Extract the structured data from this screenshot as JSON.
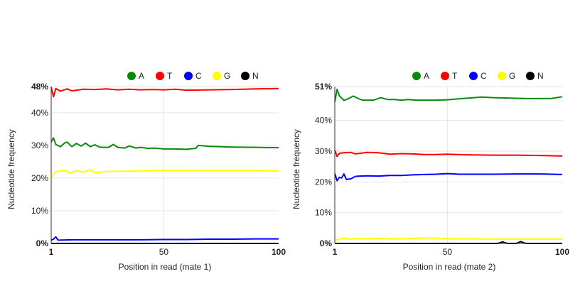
{
  "legend_colors": {
    "A": "#0a8a0a",
    "T": "#ff0000",
    "C": "#0000ff",
    "G": "#ffff00",
    "N": "#000000"
  },
  "chart_data": [
    {
      "type": "line",
      "xlabel": "Position in read (mate 1)",
      "ylabel": "Nucleotide frequency",
      "xlim": [
        1,
        100
      ],
      "ylim": [
        0,
        48
      ],
      "x_ticks": [
        1,
        50,
        100
      ],
      "y_ticks": [
        {
          "value": 0,
          "label": "0%"
        },
        {
          "value": 10,
          "label": "10%"
        },
        {
          "value": 20,
          "label": "20%"
        },
        {
          "value": 30,
          "label": "30%"
        },
        {
          "value": 40,
          "label": "40%"
        },
        {
          "value": 48,
          "label": "48%"
        }
      ],
      "grid": true,
      "legend_position": "top",
      "series": [
        {
          "name": "A",
          "color": "#0a8a0a",
          "points": [
            [
              1,
              31
            ],
            [
              2,
              32.3
            ],
            [
              3,
              30.3
            ],
            [
              5,
              29.6
            ],
            [
              7,
              30.8
            ],
            [
              8,
              31
            ],
            [
              10,
              29.6
            ],
            [
              12,
              30.6
            ],
            [
              14,
              29.8
            ],
            [
              16,
              30.7
            ],
            [
              18,
              29.6
            ],
            [
              20,
              30.2
            ],
            [
              22,
              29.5
            ],
            [
              24,
              29.4
            ],
            [
              26,
              29.4
            ],
            [
              28,
              30.3
            ],
            [
              30,
              29.4
            ],
            [
              33,
              29.2
            ],
            [
              35,
              29.8
            ],
            [
              38,
              29.2
            ],
            [
              40,
              29.4
            ],
            [
              43,
              29.1
            ],
            [
              46,
              29.2
            ],
            [
              50,
              28.9
            ],
            [
              55,
              28.9
            ],
            [
              60,
              28.8
            ],
            [
              64,
              29.1
            ],
            [
              65,
              30
            ],
            [
              70,
              29.7
            ],
            [
              80,
              29.5
            ],
            [
              90,
              29.4
            ],
            [
              100,
              29.3
            ]
          ]
        },
        {
          "name": "T",
          "color": "#ff0000",
          "points": [
            [
              1,
              47.8
            ],
            [
              2,
              44.9
            ],
            [
              3,
              47.4
            ],
            [
              5,
              46.6
            ],
            [
              8,
              47.3
            ],
            [
              10,
              46.7
            ],
            [
              15,
              47.2
            ],
            [
              20,
              47.1
            ],
            [
              25,
              47.3
            ],
            [
              30,
              47
            ],
            [
              35,
              47.2
            ],
            [
              40,
              47
            ],
            [
              45,
              47.1
            ],
            [
              50,
              47
            ],
            [
              55,
              47.2
            ],
            [
              60,
              46.9
            ],
            [
              70,
              47
            ],
            [
              80,
              47.1
            ],
            [
              90,
              47.3
            ],
            [
              100,
              47.4
            ]
          ]
        },
        {
          "name": "C",
          "color": "#0000ff",
          "points": [
            [
              1,
              1
            ],
            [
              2,
              1.3
            ],
            [
              3,
              2
            ],
            [
              4,
              1
            ],
            [
              10,
              1.1
            ],
            [
              20,
              1.1
            ],
            [
              30,
              1.1
            ],
            [
              40,
              1.1
            ],
            [
              50,
              1.2
            ],
            [
              60,
              1.2
            ],
            [
              70,
              1.3
            ],
            [
              80,
              1.3
            ],
            [
              90,
              1.4
            ],
            [
              100,
              1.4
            ]
          ]
        },
        {
          "name": "G",
          "color": "#ffff00",
          "points": [
            [
              1,
              19.8
            ],
            [
              2,
              21.3
            ],
            [
              3,
              22
            ],
            [
              5,
              22.2
            ],
            [
              7,
              22.4
            ],
            [
              9,
              21.5
            ],
            [
              12,
              22.3
            ],
            [
              15,
              21.8
            ],
            [
              18,
              22.5
            ],
            [
              20,
              21.7
            ],
            [
              25,
              22
            ],
            [
              30,
              22.1
            ],
            [
              35,
              22.1
            ],
            [
              40,
              22.2
            ],
            [
              45,
              22.3
            ],
            [
              50,
              22.3
            ],
            [
              55,
              22.3
            ],
            [
              60,
              22.4
            ],
            [
              70,
              22.3
            ],
            [
              80,
              22.3
            ],
            [
              90,
              22.3
            ],
            [
              100,
              22.2
            ]
          ]
        },
        {
          "name": "N",
          "color": "#000000",
          "points": [
            [
              1,
              0
            ],
            [
              100,
              0
            ]
          ]
        }
      ]
    },
    {
      "type": "line",
      "xlabel": "Position in read (mate 2)",
      "ylabel": "Nucleotide frequency",
      "xlim": [
        1,
        100
      ],
      "ylim": [
        0,
        51
      ],
      "x_ticks": [
        1,
        50,
        100
      ],
      "y_ticks": [
        {
          "value": 0,
          "label": "0%"
        },
        {
          "value": 10,
          "label": "10%"
        },
        {
          "value": 20,
          "label": "20%"
        },
        {
          "value": 30,
          "label": "30%"
        },
        {
          "value": 40,
          "label": "40%"
        },
        {
          "value": 51,
          "label": "51%"
        }
      ],
      "grid": true,
      "legend_position": "top",
      "series": [
        {
          "name": "A",
          "color": "#0a8a0a",
          "points": [
            [
              1,
              46
            ],
            [
              2,
              50.1
            ],
            [
              3,
              48
            ],
            [
              5,
              46.5
            ],
            [
              7,
              47.1
            ],
            [
              9,
              47.9
            ],
            [
              11,
              47.2
            ],
            [
              13,
              46.6
            ],
            [
              15,
              46.6
            ],
            [
              18,
              46.6
            ],
            [
              21,
              47.4
            ],
            [
              24,
              46.8
            ],
            [
              27,
              46.8
            ],
            [
              30,
              46.6
            ],
            [
              33,
              46.8
            ],
            [
              36,
              46.6
            ],
            [
              40,
              46.6
            ],
            [
              45,
              46.6
            ],
            [
              50,
              46.7
            ],
            [
              55,
              47
            ],
            [
              60,
              47.3
            ],
            [
              65,
              47.6
            ],
            [
              70,
              47.4
            ],
            [
              75,
              47.3
            ],
            [
              80,
              47.2
            ],
            [
              85,
              47.1
            ],
            [
              90,
              47.1
            ],
            [
              95,
              47.1
            ],
            [
              100,
              47.7
            ]
          ]
        },
        {
          "name": "T",
          "color": "#ff0000",
          "points": [
            [
              1,
              30.3
            ],
            [
              2,
              28.3
            ],
            [
              3,
              29.3
            ],
            [
              5,
              29.5
            ],
            [
              8,
              29.6
            ],
            [
              10,
              29.1
            ],
            [
              15,
              29.6
            ],
            [
              20,
              29.5
            ],
            [
              25,
              29
            ],
            [
              30,
              29.2
            ],
            [
              35,
              29.1
            ],
            [
              40,
              28.9
            ],
            [
              45,
              28.9
            ],
            [
              50,
              29
            ],
            [
              55,
              28.9
            ],
            [
              60,
              28.8
            ],
            [
              70,
              28.7
            ],
            [
              80,
              28.7
            ],
            [
              90,
              28.6
            ],
            [
              100,
              28.4
            ]
          ]
        },
        {
          "name": "C",
          "color": "#0000ff",
          "points": [
            [
              1,
              22.7
            ],
            [
              2,
              20.4
            ],
            [
              3,
              21.5
            ],
            [
              4,
              21.3
            ],
            [
              5,
              22.6
            ],
            [
              6,
              20.8
            ],
            [
              8,
              21
            ],
            [
              10,
              21.8
            ],
            [
              15,
              22
            ],
            [
              20,
              21.9
            ],
            [
              25,
              22.1
            ],
            [
              30,
              22.1
            ],
            [
              35,
              22.3
            ],
            [
              40,
              22.4
            ],
            [
              45,
              22.5
            ],
            [
              50,
              22.7
            ],
            [
              55,
              22.5
            ],
            [
              60,
              22.5
            ],
            [
              70,
              22.5
            ],
            [
              80,
              22.6
            ],
            [
              90,
              22.6
            ],
            [
              100,
              22.4
            ]
          ]
        },
        {
          "name": "G",
          "color": "#ffff00",
          "points": [
            [
              1,
              1
            ],
            [
              3,
              1.4
            ],
            [
              5,
              1.7
            ],
            [
              7,
              1.4
            ],
            [
              10,
              1.6
            ],
            [
              15,
              1.5
            ],
            [
              20,
              1.7
            ],
            [
              25,
              1.5
            ],
            [
              30,
              1.5
            ],
            [
              35,
              1.6
            ],
            [
              40,
              1.8
            ],
            [
              45,
              1.7
            ],
            [
              50,
              1.5
            ],
            [
              60,
              1.5
            ],
            [
              70,
              1.4
            ],
            [
              80,
              1.4
            ],
            [
              90,
              1.4
            ],
            [
              100,
              1.4
            ]
          ]
        },
        {
          "name": "N",
          "color": "#000000",
          "points": [
            [
              1,
              0
            ],
            [
              72,
              0
            ],
            [
              74,
              0.5
            ],
            [
              76,
              0
            ],
            [
              80,
              0
            ],
            [
              82,
              0.6
            ],
            [
              84,
              0
            ],
            [
              100,
              0
            ]
          ]
        }
      ]
    }
  ]
}
